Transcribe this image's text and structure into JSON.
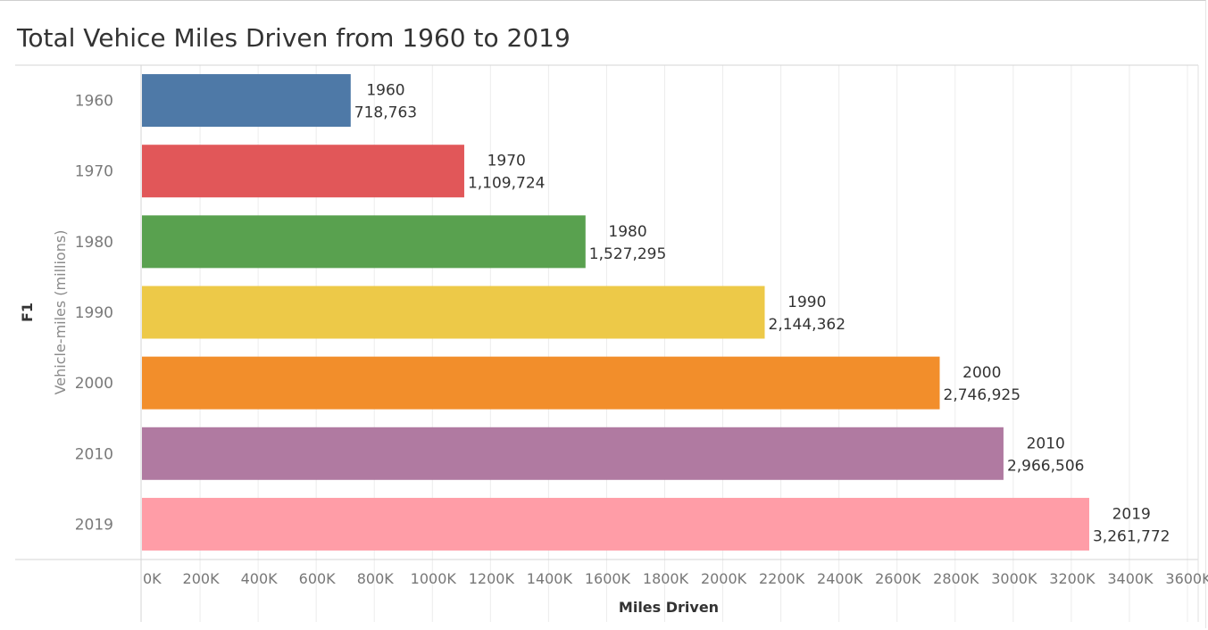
{
  "chart_data": {
    "type": "bar",
    "orientation": "horizontal",
    "title": "Total Vehice Miles Driven from 1960 to 2019",
    "ylabel": "F1",
    "ysublabel": "Vehicle-miles (millions)",
    "xlabel": "Miles Driven",
    "categories": [
      "1960",
      "1970",
      "1980",
      "1990",
      "2000",
      "2010",
      "2019"
    ],
    "values": [
      718763,
      1109724,
      1527295,
      2144362,
      2746925,
      2966506,
      3261772
    ],
    "value_labels": [
      "718,763",
      "1,109,724",
      "1,527,295",
      "2,144,362",
      "2,746,925",
      "2,966,506",
      "3,261,772"
    ],
    "colors": [
      "#4e79a7",
      "#e15759",
      "#59a14f",
      "#edc948",
      "#f28e2b",
      "#b07aa1",
      "#ff9da7"
    ],
    "xlim": [
      0,
      3700000
    ],
    "xticks": [
      0,
      200000,
      400000,
      600000,
      800000,
      1000000,
      1200000,
      1400000,
      1600000,
      1800000,
      2000000,
      2200000,
      2400000,
      2600000,
      2800000,
      3000000,
      3200000,
      3400000,
      3600000
    ],
    "xtick_labels": [
      "0K",
      "200K",
      "400K",
      "600K",
      "800K",
      "1000K",
      "1200K",
      "1400K",
      "1600K",
      "1800K",
      "2000K",
      "2200K",
      "2400K",
      "2600K",
      "2800K",
      "3000K",
      "3200K",
      "3400K",
      "3600K"
    ],
    "grid": true,
    "legend": "none"
  }
}
